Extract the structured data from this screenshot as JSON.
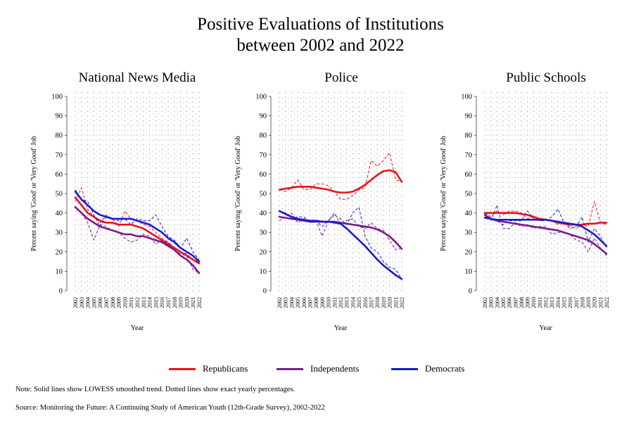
{
  "figure": {
    "title_line1": "Positive Evaluations of Institutions",
    "title_line2": "between 2002 and 2022",
    "note": "Note: Solid lines show LOWESS smoothed trend. Dotted lines show exact yearly percentages.",
    "source": "Source: Monitoring the Future: A Continuing Study of American Youth (12th-Grade Survey), 2002-2022"
  },
  "legend": [
    {
      "label": "Republicans",
      "color": "#e8131b"
    },
    {
      "label": "Independents",
      "color": "#7b1c8c"
    },
    {
      "label": "Democrats",
      "color": "#1a1ad4"
    }
  ],
  "chart_data": [
    {
      "type": "line",
      "title": "National News Media",
      "xlabel": "Year",
      "ylabel": "Percent saying 'Good' or 'Very Good' Job",
      "ylim": [
        0,
        100
      ],
      "yticks": [
        0,
        10,
        20,
        30,
        40,
        50,
        60,
        70,
        80,
        90,
        100
      ],
      "x": [
        2002,
        2003,
        2004,
        2005,
        2006,
        2007,
        2008,
        2009,
        2010,
        2011,
        2012,
        2013,
        2014,
        2015,
        2016,
        2017,
        2018,
        2019,
        2020,
        2021,
        2022
      ],
      "series": [
        {
          "name": "Republicans",
          "raw": [
            46,
            53,
            42,
            38,
            35,
            39,
            37,
            33,
            41,
            37,
            36,
            34,
            33,
            30,
            27,
            25,
            22,
            20,
            19,
            16,
            15
          ],
          "smooth": [
            48,
            44,
            40,
            38,
            36,
            35,
            35,
            34,
            34,
            34,
            33,
            32,
            30,
            28,
            26,
            24,
            22,
            20,
            18,
            16,
            14
          ]
        },
        {
          "name": "Independents",
          "raw": [
            43,
            40,
            35,
            26,
            34,
            33,
            31,
            30,
            27,
            25,
            26,
            29,
            28,
            24,
            26,
            25,
            21,
            19,
            18,
            11,
            9
          ],
          "smooth": [
            43,
            40,
            37,
            35,
            33,
            32,
            31,
            30,
            29,
            29,
            28,
            28,
            27,
            26,
            25,
            23,
            21,
            18,
            16,
            13,
            9
          ]
        },
        {
          "name": "Democrats",
          "raw": [
            52,
            47,
            46,
            39,
            33,
            38,
            37,
            36,
            37,
            34,
            37,
            36,
            36,
            39,
            33,
            28,
            26,
            22,
            27,
            20,
            16
          ],
          "smooth": [
            51,
            47,
            44,
            41,
            39,
            38,
            37,
            37,
            37,
            37,
            36,
            35,
            34,
            32,
            30,
            27,
            25,
            22,
            20,
            18,
            15
          ]
        }
      ]
    },
    {
      "type": "line",
      "title": "Police",
      "xlabel": "Year",
      "ylabel": "Percent saying 'Good' or 'Very Good' Job",
      "ylim": [
        0,
        100
      ],
      "yticks": [
        0,
        10,
        20,
        30,
        40,
        50,
        60,
        70,
        80,
        90,
        100
      ],
      "x": [
        2002,
        2003,
        2004,
        2005,
        2006,
        2007,
        2008,
        2009,
        2010,
        2011,
        2012,
        2013,
        2014,
        2015,
        2016,
        2017,
        2018,
        2019,
        2020,
        2021,
        2022
      ],
      "series": [
        {
          "name": "Republicans",
          "raw": [
            52,
            51,
            53,
            57,
            52,
            52,
            55,
            55,
            54,
            51,
            47,
            47,
            49,
            52,
            53,
            67,
            64,
            67,
            71,
            57,
            56
          ],
          "smooth": [
            52,
            52.5,
            53,
            53.5,
            53.5,
            53.5,
            53,
            52.5,
            52,
            51,
            50.5,
            50.5,
            51,
            52.5,
            54.5,
            57,
            59.5,
            61.5,
            62,
            61,
            56
          ]
        },
        {
          "name": "Independents",
          "raw": [
            36,
            38,
            40,
            35,
            37,
            35,
            36,
            28,
            36,
            40,
            34,
            36,
            37,
            33,
            32,
            35,
            32,
            31,
            26,
            21,
            22
          ],
          "smooth": [
            38,
            37.5,
            37,
            36.5,
            36,
            35.5,
            35.5,
            35.5,
            35.5,
            35.5,
            35,
            34.5,
            34,
            33.5,
            33,
            32.5,
            31.5,
            30,
            28,
            25,
            21.5
          ]
        },
        {
          "name": "Democrats",
          "raw": [
            41,
            40,
            37,
            38,
            38,
            35,
            36,
            33,
            36,
            39,
            37,
            34,
            40,
            43,
            28,
            22,
            20,
            15,
            12,
            11,
            6
          ],
          "smooth": [
            41,
            39.5,
            38,
            37,
            36.5,
            36,
            36,
            35.5,
            35.5,
            35,
            34.5,
            32,
            29,
            26,
            23,
            19.5,
            16,
            13,
            10.5,
            8,
            6
          ]
        }
      ]
    },
    {
      "type": "line",
      "title": "Public Schools",
      "xlabel": "Year",
      "ylabel": "Percent saying 'Good' or 'Very Good' Job",
      "ylim": [
        0,
        100
      ],
      "yticks": [
        0,
        10,
        20,
        30,
        40,
        50,
        60,
        70,
        80,
        90,
        100
      ],
      "x": [
        2002,
        2003,
        2004,
        2005,
        2006,
        2007,
        2008,
        2009,
        2010,
        2011,
        2012,
        2013,
        2014,
        2015,
        2016,
        2017,
        2018,
        2019,
        2020,
        2021,
        2022
      ],
      "series": [
        {
          "name": "Republicans",
          "raw": [
            40,
            38,
            41,
            39,
            41,
            41,
            40,
            37,
            38,
            36,
            37,
            36,
            34,
            35,
            33,
            32,
            34,
            33,
            46,
            35,
            34
          ],
          "smooth": [
            40,
            40,
            40,
            40,
            40,
            40,
            39.5,
            39,
            38,
            37,
            36.5,
            36,
            35,
            34.5,
            34,
            34,
            34,
            34.5,
            34.5,
            35,
            35
          ]
        },
        {
          "name": "Independents",
          "raw": [
            40,
            36,
            44,
            32,
            32,
            35,
            33,
            34,
            32,
            33,
            33,
            29,
            30,
            30,
            29,
            26,
            25,
            20,
            27,
            22,
            18
          ],
          "smooth": [
            39,
            37,
            36,
            35.5,
            35,
            34.5,
            34,
            33.5,
            33,
            32.5,
            32,
            31.5,
            31,
            30,
            29,
            28,
            27,
            26,
            24,
            21.5,
            19
          ]
        },
        {
          "name": "Democrats",
          "raw": [
            38,
            37,
            36,
            34,
            36,
            36,
            36,
            41,
            37,
            36,
            36,
            38,
            42,
            35,
            32,
            33,
            38,
            25,
            32,
            28,
            22
          ],
          "smooth": [
            37.5,
            37,
            36.5,
            36.5,
            36.5,
            36.5,
            36.5,
            36.5,
            36.5,
            36.5,
            36.5,
            36,
            35.5,
            35,
            34.5,
            34,
            33,
            31,
            29,
            26,
            23
          ]
        }
      ]
    }
  ]
}
